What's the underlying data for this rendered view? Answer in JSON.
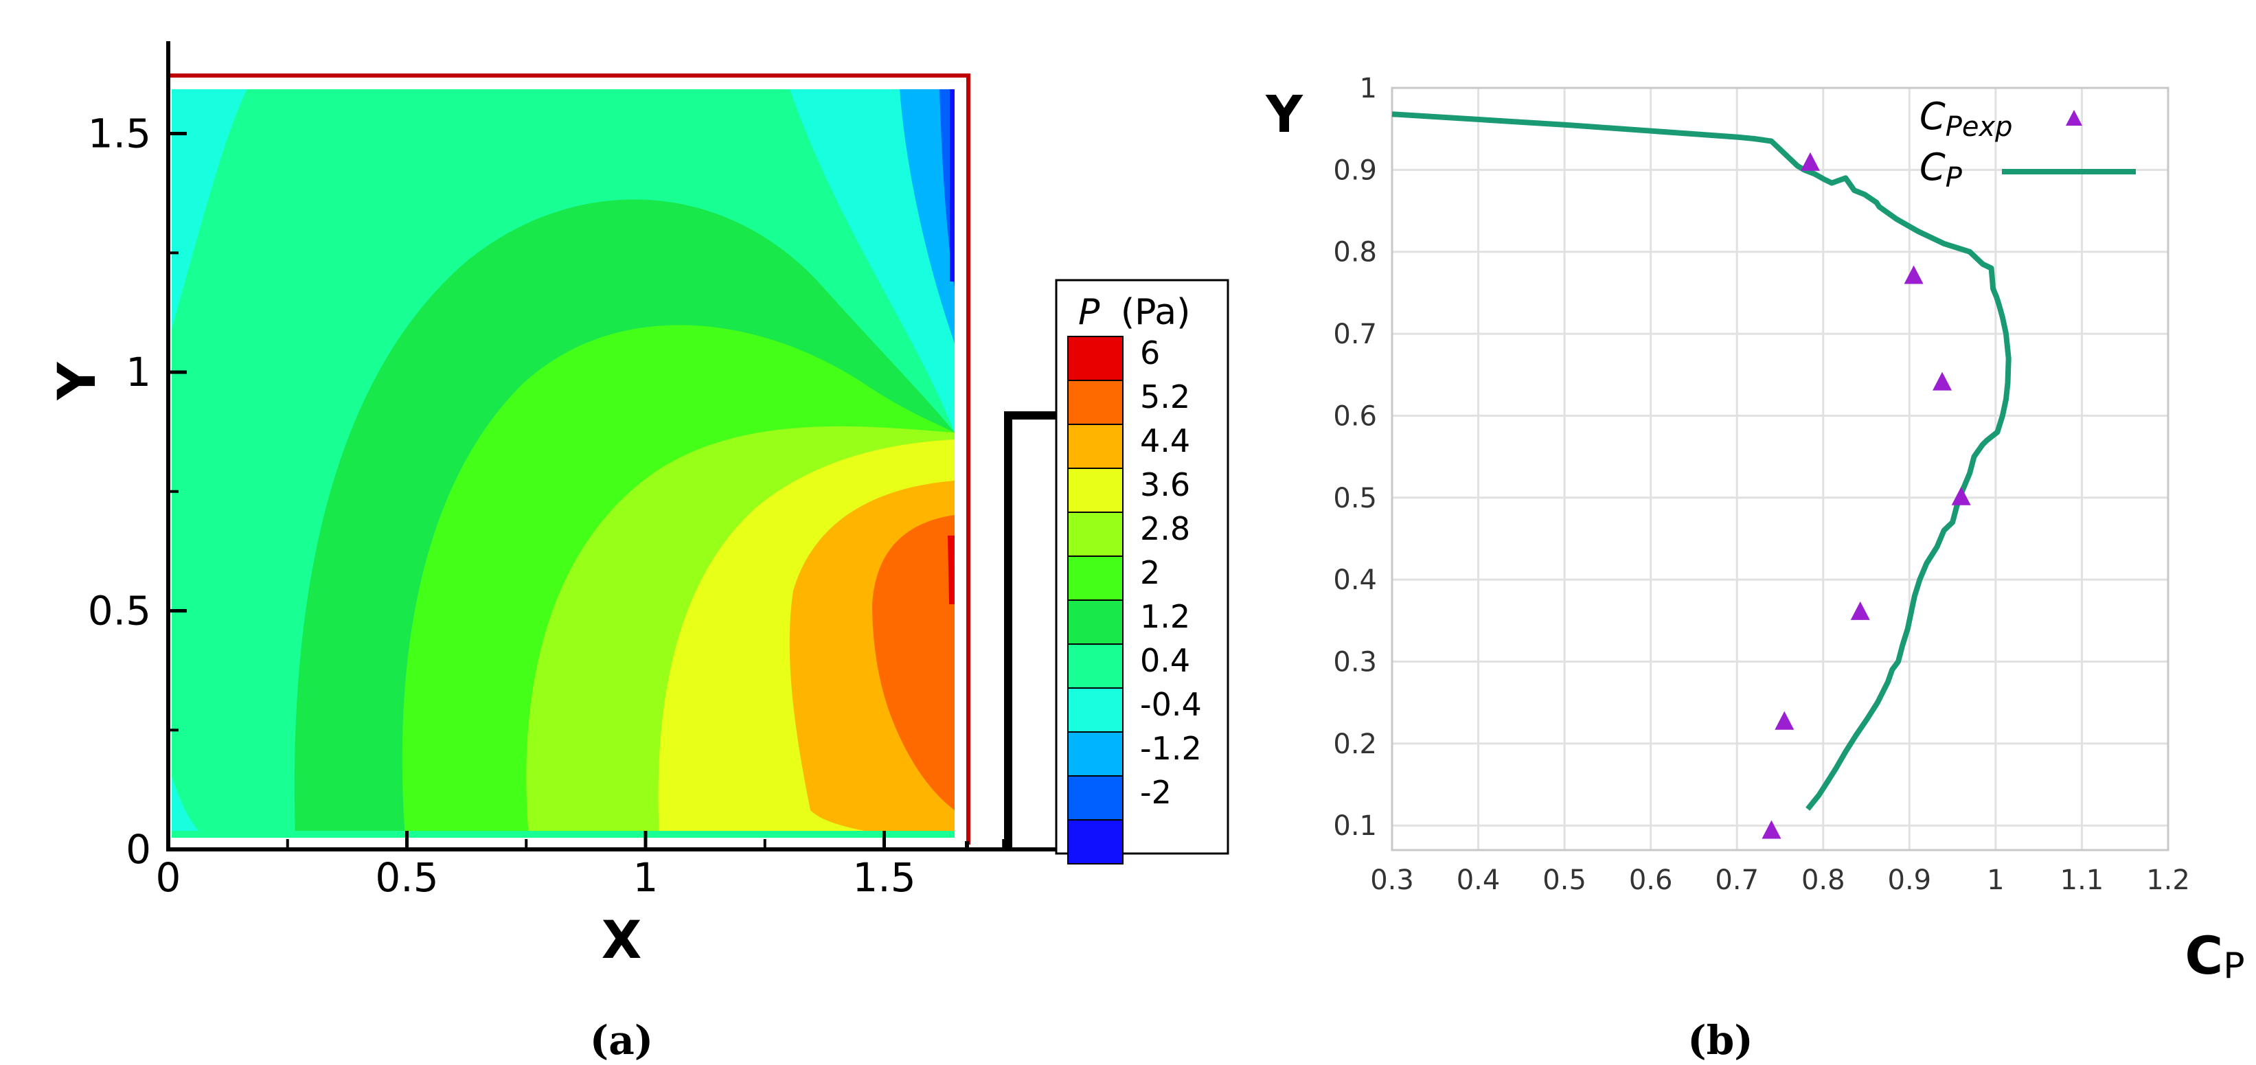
{
  "panel_a": {
    "caption": "(a)",
    "x_label": "X",
    "y_label": "Y",
    "x_ticks": [
      "0",
      "0.5",
      "1",
      "1.5"
    ],
    "y_ticks": [
      "0",
      "0.5",
      "1",
      "1.5"
    ],
    "legend_title_var": "P",
    "legend_title_unit": "(Pa)",
    "legend_levels": [
      "6",
      "5.2",
      "4.4",
      "3.6",
      "2.8",
      "2",
      "1.2",
      "0.4",
      "-0.4",
      "-1.2",
      "-2"
    ],
    "legend_colors": [
      "#e80000",
      "#ff6a00",
      "#ffb400",
      "#e8ff18",
      "#98ff18",
      "#44ff18",
      "#18e84a",
      "#18ff94",
      "#18ffe0",
      "#00b4ff",
      "#0060ff",
      "#1010ff"
    ],
    "colors": {
      "frame": "#c00000",
      "geometry": "#000000"
    }
  },
  "panel_b": {
    "caption": "(b)",
    "chart_data": {
      "type": "line",
      "xlabel_main": "C",
      "xlabel_sub": "P",
      "ylabel": "Y",
      "xlim": [
        0.3,
        1.2
      ],
      "ylim": [
        0.07,
        1.0
      ],
      "x_ticks": [
        "0.3",
        "0.4",
        "0.5",
        "0.6",
        "0.7",
        "0.8",
        "0.9",
        "1",
        "1.1",
        "1.2"
      ],
      "y_ticks": [
        "0.1",
        "0.2",
        "0.3",
        "0.4",
        "0.5",
        "0.6",
        "0.7",
        "0.8",
        "0.9",
        "1"
      ],
      "grid": true,
      "legend_position": "top-right",
      "series": [
        {
          "name_main": "C",
          "name_sub": "Pexp",
          "type": "scatter",
          "color": "#9b1fd0",
          "marker": "triangle",
          "x": [
            0.74,
            0.755,
            0.843,
            0.96,
            0.938,
            0.905,
            0.785
          ],
          "y": [
            0.093,
            0.226,
            0.36,
            0.5,
            0.64,
            0.77,
            0.908
          ]
        },
        {
          "name_main": "C",
          "name_sub": "P",
          "type": "line",
          "color": "#1a9a73",
          "x": [
            0.782,
            0.795,
            0.803,
            0.815,
            0.826,
            0.838,
            0.851,
            0.863,
            0.875,
            0.88,
            0.887,
            0.892,
            0.898,
            0.902,
            0.906,
            0.912,
            0.92,
            0.926,
            0.932,
            0.94,
            0.95,
            0.955,
            0.962,
            0.97,
            0.975,
            0.985,
            0.99,
            1.002,
            1.008,
            1.012,
            1.014,
            1.015,
            1.012,
            1.008,
            1.004,
            1.001,
            0.997,
            0.995,
            0.985,
            0.97,
            0.94,
            0.91,
            0.885,
            0.865,
            0.862,
            0.855,
            0.848,
            0.836,
            0.826,
            0.818,
            0.81,
            0.802,
            0.79,
            0.778,
            0.77,
            0.76,
            0.75,
            0.74,
            0.72,
            0.7,
            0.5,
            0.3
          ],
          "y": [
            0.12,
            0.137,
            0.15,
            0.17,
            0.19,
            0.21,
            0.23,
            0.25,
            0.275,
            0.29,
            0.3,
            0.32,
            0.34,
            0.36,
            0.38,
            0.4,
            0.42,
            0.43,
            0.44,
            0.46,
            0.47,
            0.49,
            0.51,
            0.53,
            0.55,
            0.565,
            0.57,
            0.58,
            0.6,
            0.62,
            0.64,
            0.67,
            0.7,
            0.72,
            0.735,
            0.745,
            0.755,
            0.78,
            0.785,
            0.8,
            0.81,
            0.825,
            0.84,
            0.855,
            0.86,
            0.865,
            0.87,
            0.875,
            0.89,
            0.887,
            0.884,
            0.888,
            0.895,
            0.9,
            0.905,
            0.915,
            0.925,
            0.935,
            0.938,
            0.94,
            0.955,
            0.968
          ]
        }
      ]
    }
  }
}
